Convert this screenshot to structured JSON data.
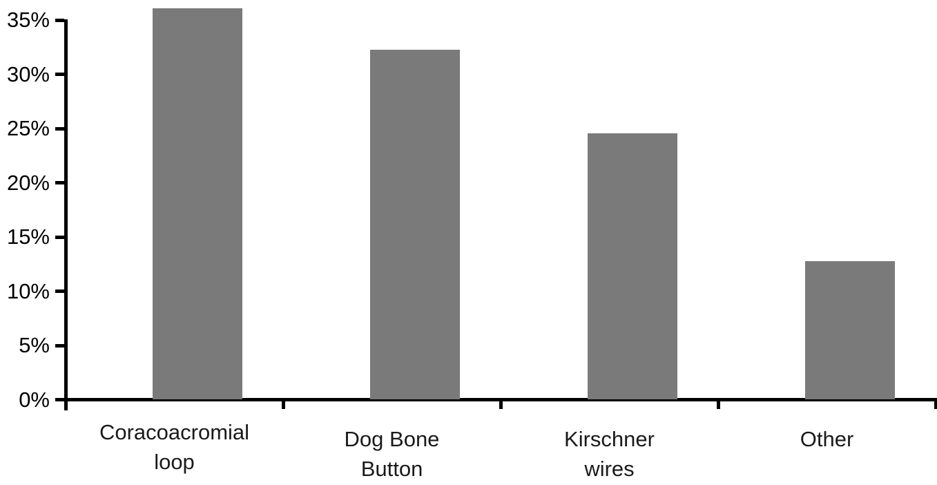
{
  "chart_data": {
    "type": "bar",
    "title": "",
    "xlabel": "",
    "ylabel": "",
    "categories": [
      "Coracoacromial loop",
      "Dog Bone Button",
      "Kirschner wires",
      "Other"
    ],
    "categories_display": [
      [
        "Coracoacromial",
        "loop"
      ],
      [
        "Dog Bone",
        "Button"
      ],
      [
        "Kirschner",
        "wires"
      ],
      [
        "Other"
      ]
    ],
    "values": [
      36.1,
      32.3,
      24.6,
      12.8
    ],
    "unit": "%",
    "ylim": [
      0,
      35
    ],
    "ytick_step": 5,
    "ytick_labels": [
      "0%",
      "5%",
      "10%",
      "15%",
      "20%",
      "25%",
      "30%",
      "35%"
    ],
    "grid": false,
    "legend": "none",
    "colors": {
      "bar": "#7a7a7a",
      "axis": "#000000",
      "background": "#ffffff"
    }
  }
}
